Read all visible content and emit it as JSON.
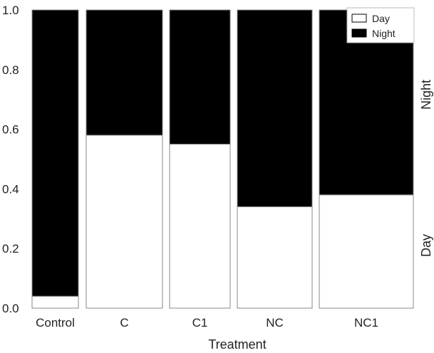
{
  "chart_data": {
    "type": "bar",
    "stacked": true,
    "normalized": true,
    "xlabel": "Treatment",
    "ylabel": "",
    "ylim": [
      0,
      1
    ],
    "yticks": [
      "0.0",
      "0.2",
      "0.4",
      "0.6",
      "0.8",
      "1.0"
    ],
    "categories": [
      "Control",
      "C",
      "C1",
      "NC",
      "NC1"
    ],
    "series": [
      {
        "name": "Day",
        "color": "#ffffff",
        "values": [
          0.04,
          0.58,
          0.55,
          0.34,
          0.38
        ]
      },
      {
        "name": "Night",
        "color": "#000000",
        "values": [
          0.96,
          0.42,
          0.45,
          0.66,
          0.62
        ]
      }
    ],
    "side_labels": {
      "top": "Night",
      "bottom": "Day"
    },
    "legend": {
      "position": "top-right",
      "entries": [
        "Day",
        "Night"
      ]
    },
    "grid": false
  }
}
